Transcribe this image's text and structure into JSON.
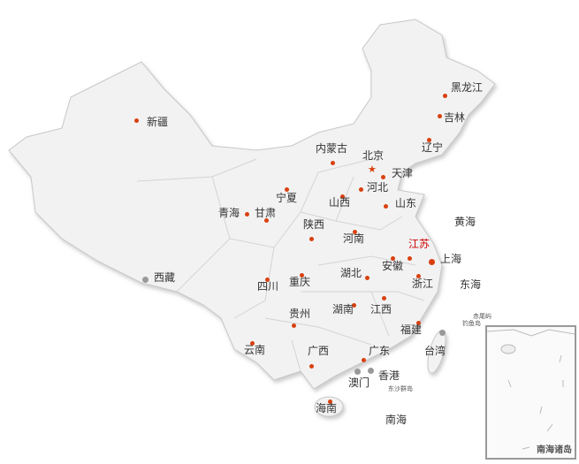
{
  "provinces": [
    {
      "name": "黑龙江",
      "marker": "capital"
    },
    {
      "name": "吉林",
      "marker": "capital"
    },
    {
      "name": "辽宁",
      "marker": "capital"
    },
    {
      "name": "新疆",
      "marker": "capital"
    },
    {
      "name": "内蒙古",
      "marker": "capital"
    },
    {
      "name": "北京",
      "marker": "national-capital-star"
    },
    {
      "name": "天津",
      "marker": "capital"
    },
    {
      "name": "河北",
      "marker": "capital"
    },
    {
      "name": "宁夏",
      "marker": "capital"
    },
    {
      "name": "山西",
      "marker": "capital"
    },
    {
      "name": "山东",
      "marker": "capital"
    },
    {
      "name": "青海",
      "marker": "capital"
    },
    {
      "name": "甘肃",
      "marker": "capital"
    },
    {
      "name": "陕西",
      "marker": "capital"
    },
    {
      "name": "河南",
      "marker": "capital"
    },
    {
      "name": "江苏",
      "marker": "capital",
      "highlight": true
    },
    {
      "name": "上海",
      "marker": "capital-large"
    },
    {
      "name": "安徽",
      "marker": "capital"
    },
    {
      "name": "西藏",
      "marker": "gray"
    },
    {
      "name": "四川",
      "marker": "capital"
    },
    {
      "name": "重庆",
      "marker": "capital"
    },
    {
      "name": "湖北",
      "marker": "capital"
    },
    {
      "name": "浙江",
      "marker": "capital"
    },
    {
      "name": "贵州",
      "marker": "capital"
    },
    {
      "name": "湖南",
      "marker": "capital"
    },
    {
      "name": "江西",
      "marker": "capital"
    },
    {
      "name": "福建",
      "marker": "capital"
    },
    {
      "name": "台湾",
      "marker": "gray"
    },
    {
      "name": "云南",
      "marker": "capital"
    },
    {
      "name": "广西",
      "marker": "capital"
    },
    {
      "name": "广东",
      "marker": "capital"
    },
    {
      "name": "澳门",
      "marker": "gray"
    },
    {
      "name": "香港",
      "marker": "gray"
    },
    {
      "name": "海南",
      "marker": "capital"
    }
  ],
  "seas": [
    "黄海",
    "东海",
    "南海"
  ],
  "islands": [
    "赤尾屿",
    "钓鱼岛",
    "东沙群岛"
  ],
  "inset": {
    "title": "南海诸岛"
  },
  "colors": {
    "marker": "#d9400f",
    "highlight": "#cc0000",
    "land": "#f2f2f2",
    "border": "#c8c8c8",
    "gray_marker": "#999999"
  }
}
